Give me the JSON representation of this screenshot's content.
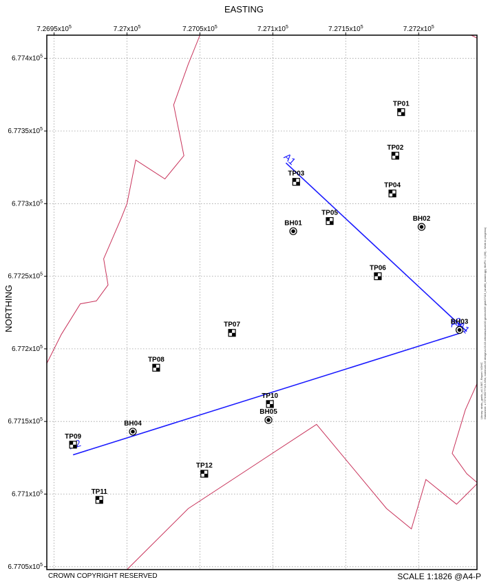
{
  "titles": {
    "x": "EASTING",
    "y": "NORTHING"
  },
  "footer": {
    "copyright": "CROWN COPYRIGHT RESERVED",
    "scale": "SCALE 1:1826 @A4-P"
  },
  "side_note": [
    "Library: strats_gaelic_v4.3.987, Report: NOHC",
    "Datasheet: x:727105/277115-3/04, external4-03 design\\4-03-03-infrastructure\\00 geotech\\06 gint\\27115_landfill_master.gpj, file/P1: 1 (86) - Work in progress)"
  ],
  "x_ticks": [
    {
      "value": 726950,
      "label": "7.2695x10",
      "exp": "5"
    },
    {
      "value": 727000,
      "label": "7.27x10",
      "exp": "5"
    },
    {
      "value": 727050,
      "label": "7.2705x10",
      "exp": "5"
    },
    {
      "value": 727100,
      "label": "7.271x10",
      "exp": "5"
    },
    {
      "value": 727150,
      "label": "7.2715x10",
      "exp": "5"
    },
    {
      "value": 727200,
      "label": "7.272x10",
      "exp": "5"
    }
  ],
  "y_ticks": [
    {
      "value": 677400,
      "label": "6.774x10",
      "exp": "5"
    },
    {
      "value": 677350,
      "label": "6.7735x10",
      "exp": "5"
    },
    {
      "value": 677300,
      "label": "6.773x10",
      "exp": "5"
    },
    {
      "value": 677250,
      "label": "6.7725x10",
      "exp": "5"
    },
    {
      "value": 677200,
      "label": "6.772x10",
      "exp": "5"
    },
    {
      "value": 677150,
      "label": "6.7715x10",
      "exp": "5"
    },
    {
      "value": 677100,
      "label": "6.771x10",
      "exp": "5"
    },
    {
      "value": 677050,
      "label": "6.7705x10",
      "exp": "5"
    }
  ],
  "extent": {
    "xmin": 726945,
    "xmax": 727240,
    "ymin": 677048,
    "ymax": 677416
  },
  "colors": {
    "boundary": "#c8325a",
    "section": "#1a1aff",
    "grid": "#9a9a9a"
  },
  "points": [
    {
      "id": "TP01",
      "type": "trial-pit",
      "e": 727188,
      "n": 677363
    },
    {
      "id": "TP02",
      "type": "trial-pit",
      "e": 727184,
      "n": 677333
    },
    {
      "id": "TP03",
      "type": "trial-pit",
      "e": 727116,
      "n": 677315
    },
    {
      "id": "TP04",
      "type": "trial-pit",
      "e": 727182,
      "n": 677307
    },
    {
      "id": "TP05",
      "type": "trial-pit",
      "e": 727139,
      "n": 677288
    },
    {
      "id": "BH01",
      "type": "borehole",
      "e": 727114,
      "n": 677281
    },
    {
      "id": "BH02",
      "type": "borehole",
      "e": 727202,
      "n": 677284
    },
    {
      "id": "TP06",
      "type": "trial-pit",
      "e": 727172,
      "n": 677250
    },
    {
      "id": "TP07",
      "type": "trial-pit",
      "e": 727072,
      "n": 677211
    },
    {
      "id": "BH03",
      "type": "borehole",
      "e": 727228,
      "n": 677213
    },
    {
      "id": "TP08",
      "type": "trial-pit",
      "e": 727020,
      "n": 677187
    },
    {
      "id": "TP10",
      "type": "trial-pit",
      "e": 727098,
      "n": 677162
    },
    {
      "id": "BH05",
      "type": "borehole",
      "e": 727097,
      "n": 677151
    },
    {
      "id": "BH04",
      "type": "borehole",
      "e": 727004,
      "n": 677143
    },
    {
      "id": "TP09",
      "type": "trial-pit",
      "e": 726963,
      "n": 677134
    },
    {
      "id": "TP12",
      "type": "trial-pit",
      "e": 727053,
      "n": 677114
    },
    {
      "id": "TP11",
      "type": "trial-pit",
      "e": 726981,
      "n": 677096
    }
  ],
  "sections": [
    {
      "label": "A1",
      "start": {
        "e": 727109,
        "n": 677328
      },
      "end": {
        "e": 727233,
        "n": 677212
      }
    },
    {
      "label": "A2",
      "start": {
        "e": 726963,
        "n": 677127
      },
      "end": {
        "e": 727229,
        "n": 677211
      }
    }
  ],
  "boundaries": [
    [
      {
        "e": 726945,
        "n": 677190
      },
      {
        "e": 726955,
        "n": 677210
      },
      {
        "e": 726968,
        "n": 677231
      },
      {
        "e": 726979,
        "n": 677233
      },
      {
        "e": 726987,
        "n": 677244
      },
      {
        "e": 726984,
        "n": 677262
      },
      {
        "e": 726987,
        "n": 677269
      },
      {
        "e": 726996,
        "n": 677290
      },
      {
        "e": 727000,
        "n": 677300
      },
      {
        "e": 727006,
        "n": 677330
      },
      {
        "e": 727026,
        "n": 677317
      },
      {
        "e": 727039,
        "n": 677333
      },
      {
        "e": 727032,
        "n": 677368
      },
      {
        "e": 727042,
        "n": 677396
      },
      {
        "e": 727050,
        "n": 677416
      }
    ],
    [
      {
        "e": 727000,
        "n": 677048
      },
      {
        "e": 727006,
        "n": 677054
      },
      {
        "e": 727042,
        "n": 677090
      },
      {
        "e": 727130,
        "n": 677148
      },
      {
        "e": 727178,
        "n": 677090
      },
      {
        "e": 727195,
        "n": 677076
      },
      {
        "e": 727205,
        "n": 677110
      },
      {
        "e": 727226,
        "n": 677093
      },
      {
        "e": 727233,
        "n": 677100
      },
      {
        "e": 727240,
        "n": 677107
      }
    ],
    [
      {
        "e": 727240,
        "n": 677176
      },
      {
        "e": 727232,
        "n": 677158
      },
      {
        "e": 727223,
        "n": 677128
      },
      {
        "e": 727233,
        "n": 677114
      },
      {
        "e": 727240,
        "n": 677108
      }
    ],
    [
      {
        "e": 727236,
        "n": 677416
      },
      {
        "e": 727240,
        "n": 677414
      }
    ]
  ]
}
